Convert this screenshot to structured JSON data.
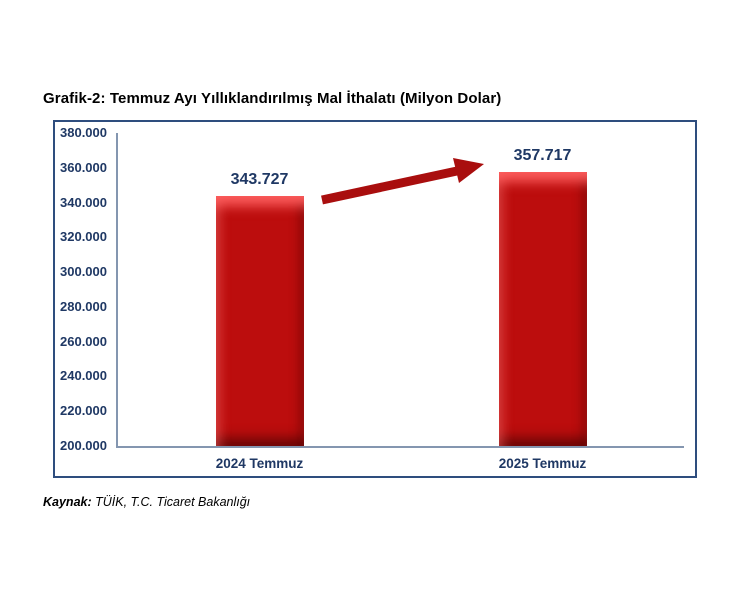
{
  "title": "Grafik-2: Temmuz Ayı Yıllıklandırılmış Mal İthalatı (Milyon Dolar)",
  "source": {
    "prefix": "Kaynak:",
    "text": " TÜİK, T.C. Ticaret Bakanlığı"
  },
  "colors": {
    "label_navy": "#1f3864",
    "bar_red": "#bc0d0d",
    "arrow_red": "#a90e0e",
    "axis_steel_blue": "#8496b0",
    "box_border": "#2e4d7e"
  },
  "chart_data": {
    "type": "bar",
    "title": "Grafik-2: Temmuz Ayı Yıllıklandırılmış Mal İthalatı (Milyon Dolar)",
    "categories": [
      "2024 Temmuz",
      "2025 Temmuz"
    ],
    "values": [
      343727,
      357717
    ],
    "value_labels": [
      "343.727",
      "357.717"
    ],
    "xlabel": "",
    "ylabel": "",
    "ylim": [
      200000,
      380000
    ],
    "ytick_step": 20000,
    "ytick_labels_top_to_bottom": [
      "380.000",
      "360.000",
      "340.000",
      "320.000",
      "300.000",
      "280.000",
      "260.000",
      "240.000",
      "220.000",
      "200.000"
    ],
    "grid": false,
    "legend": false,
    "annotation": "red increase arrow from 2024 bar toward 2025 value label",
    "source": "Kaynak: TÜİK, T.C. Ticaret Bakanlığı"
  }
}
